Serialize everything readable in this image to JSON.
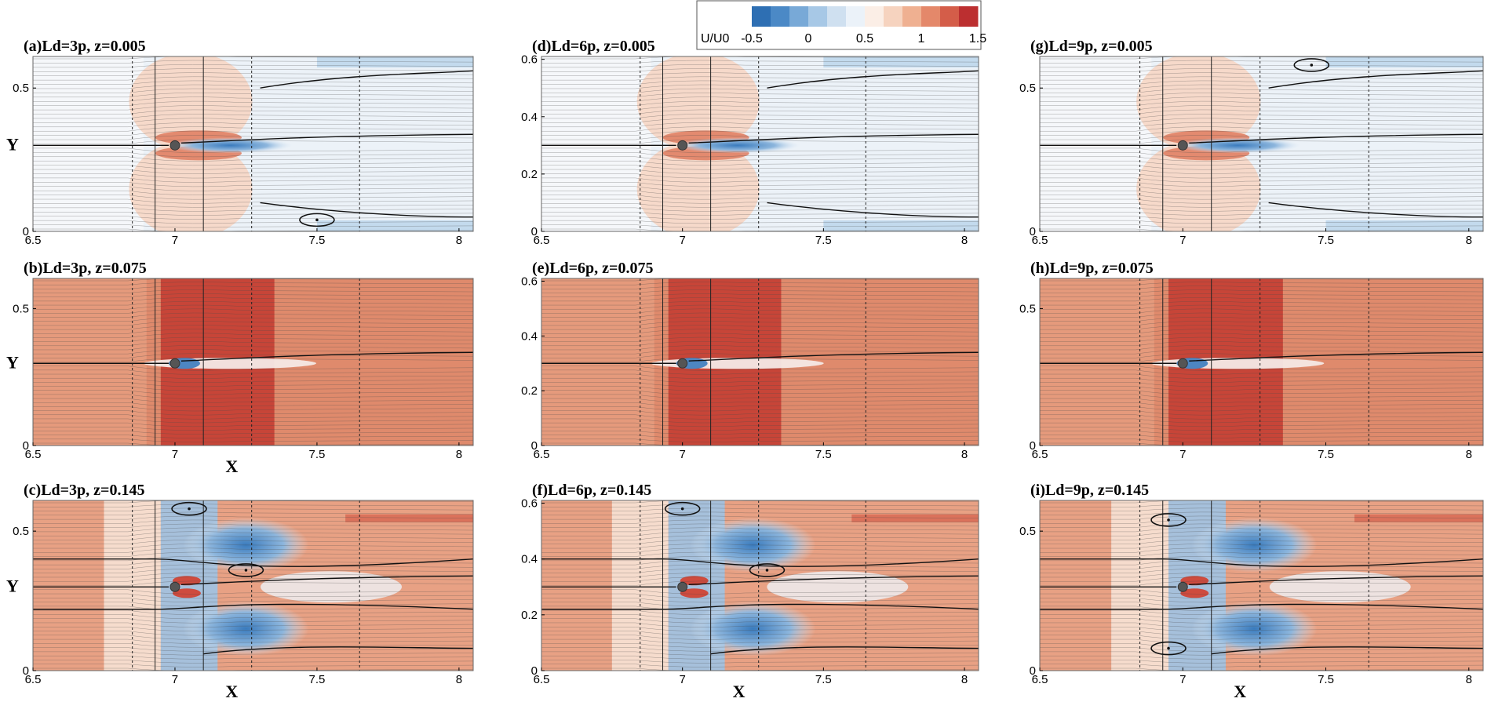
{
  "chart_data": {
    "type": "heatmap",
    "colorbar": {
      "label": "U/U0",
      "ticks": [
        "-0.5",
        "0",
        "0.5",
        "1",
        "1.5"
      ],
      "tick_values": [
        -0.5,
        0,
        0.5,
        1,
        1.5
      ],
      "range": [
        -0.5,
        1.5
      ],
      "colors": [
        "#2e6fb3",
        "#4b89c6",
        "#78a9d7",
        "#a7c8e6",
        "#cfe0f0",
        "#ebf2f9",
        "#fbeee6",
        "#f6d3bf",
        "#efb091",
        "#e4886a",
        "#d45d49",
        "#bc2f30"
      ]
    },
    "x_ticks": [
      6.5,
      7,
      7.5,
      8
    ],
    "x_tick_labels": [
      "6.5",
      "7",
      "7.5",
      "8"
    ],
    "x_range": [
      6.5,
      8.05
    ],
    "y_range": [
      0,
      0.61
    ],
    "xlabel": "X",
    "ylabel": "Y",
    "panels": [
      {
        "id": "a",
        "title": "(a)Ld=3p, z=0.005",
        "ld": 3,
        "z": 0.005,
        "y_ticks": [
          "0",
          "0.5"
        ],
        "y_tick_values": [
          0,
          0.5
        ],
        "show_ylabel": true,
        "show_xlabel": false,
        "cylinder": [
          7.0,
          0.3
        ],
        "vortices": [
          [
            7.5,
            0.04
          ]
        ]
      },
      {
        "id": "b",
        "title": "(b)Ld=3p, z=0.075",
        "ld": 3,
        "z": 0.075,
        "y_ticks": [
          "0",
          "0.5"
        ],
        "y_tick_values": [
          0,
          0.5
        ],
        "show_ylabel": true,
        "show_xlabel": true,
        "cylinder": [
          7.0,
          0.3
        ],
        "vortices": []
      },
      {
        "id": "c",
        "title": "(c)Ld=3p, z=0.145",
        "ld": 3,
        "z": 0.145,
        "y_ticks": [
          "0",
          "0.5"
        ],
        "y_tick_values": [
          0,
          0.5
        ],
        "show_ylabel": true,
        "show_xlabel": true,
        "cylinder": [
          7.0,
          0.3
        ],
        "vortices": [
          [
            7.05,
            0.58
          ],
          [
            7.25,
            0.36
          ]
        ]
      },
      {
        "id": "d",
        "title": "(d)Ld=6p, z=0.005",
        "ld": 6,
        "z": 0.005,
        "y_ticks": [
          "0",
          "0.2",
          "0.4",
          "0.6"
        ],
        "y_tick_values": [
          0,
          0.2,
          0.4,
          0.6
        ],
        "show_ylabel": false,
        "show_xlabel": false,
        "cylinder": [
          7.0,
          0.3
        ],
        "vortices": []
      },
      {
        "id": "e",
        "title": "(e)Ld=6p, z=0.075",
        "ld": 6,
        "z": 0.075,
        "y_ticks": [
          "0",
          "0.2",
          "0.4",
          "0.6"
        ],
        "y_tick_values": [
          0,
          0.2,
          0.4,
          0.6
        ],
        "show_ylabel": false,
        "show_xlabel": false,
        "cylinder": [
          7.0,
          0.3
        ],
        "vortices": []
      },
      {
        "id": "f",
        "title": "(f)Ld=6p, z=0.145",
        "ld": 6,
        "z": 0.145,
        "y_ticks": [
          "0",
          "0.2",
          "0.4",
          "0.6"
        ],
        "y_tick_values": [
          0,
          0.2,
          0.4,
          0.6
        ],
        "show_ylabel": false,
        "show_xlabel": true,
        "cylinder": [
          7.0,
          0.3
        ],
        "vortices": [
          [
            7.0,
            0.58
          ],
          [
            7.3,
            0.36
          ]
        ]
      },
      {
        "id": "g",
        "title": "(g)Ld=9p, z=0.005",
        "ld": 9,
        "z": 0.005,
        "y_ticks": [
          "0",
          "0.5"
        ],
        "y_tick_values": [
          0,
          0.5
        ],
        "show_ylabel": false,
        "show_xlabel": false,
        "cylinder": [
          7.0,
          0.3
        ],
        "vortices": [
          [
            7.45,
            0.58
          ]
        ]
      },
      {
        "id": "h",
        "title": "(h)Ld=9p, z=0.075",
        "ld": 9,
        "z": 0.075,
        "y_ticks": [
          "0",
          "0.5"
        ],
        "y_tick_values": [
          0,
          0.5
        ],
        "show_ylabel": false,
        "show_xlabel": false,
        "cylinder": [
          7.0,
          0.3
        ],
        "vortices": []
      },
      {
        "id": "i",
        "title": "(i)Ld=9p, z=0.145",
        "ld": 9,
        "z": 0.145,
        "y_ticks": [
          "0",
          "0.5"
        ],
        "y_tick_values": [
          0,
          0.5
        ],
        "show_ylabel": false,
        "show_xlabel": true,
        "cylinder": [
          7.0,
          0.3
        ],
        "vortices": [
          [
            6.95,
            0.54
          ],
          [
            6.95,
            0.08
          ]
        ]
      }
    ]
  }
}
